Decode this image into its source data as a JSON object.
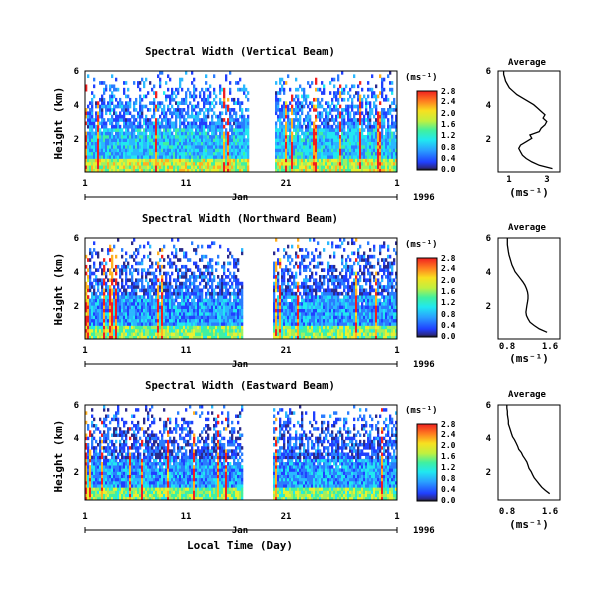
{
  "chart_data": [
    {
      "type": "heatmap",
      "title": "Spectral Width (Vertical Beam)",
      "ylabel": "Height (km)",
      "ylim": [
        0,
        6
      ],
      "yticks": [
        "2",
        "4",
        "6"
      ],
      "xticks": [
        "1",
        "11",
        "21",
        "1"
      ],
      "month_label": "Jan",
      "year_label": "1996",
      "data_gap_days": [
        17.2,
        19.8
      ],
      "colorbar": {
        "unit": "(ms⁻¹)",
        "ticks": [
          "0.0",
          "0.4",
          "0.8",
          "1.2",
          "1.6",
          "2.0",
          "2.4",
          "2.8"
        ],
        "range": [
          0,
          2.8
        ]
      },
      "average": {
        "title": "Average",
        "xlabel": "(ms⁻¹)",
        "xticks": [
          "1",
          "3"
        ],
        "xlim": [
          0.5,
          3.8
        ],
        "height": [
          0.2,
          0.4,
          0.6,
          0.8,
          1.0,
          1.2,
          1.4,
          1.6,
          1.8,
          2.0,
          2.2,
          2.4,
          2.6,
          2.8,
          3.0,
          3.2,
          3.4,
          3.6,
          3.8,
          4.0,
          4.2,
          4.4,
          4.6,
          4.8,
          5.0,
          5.2,
          5.4,
          5.6,
          5.8,
          6.0
        ],
        "values": [
          3.4,
          2.7,
          2.3,
          2.0,
          1.8,
          1.7,
          1.6,
          1.7,
          2.0,
          2.3,
          2.2,
          2.7,
          2.8,
          3.0,
          3.1,
          2.9,
          3.0,
          2.8,
          2.6,
          2.4,
          2.1,
          1.8,
          1.5,
          1.3,
          1.1,
          1.0,
          0.9,
          0.85,
          0.8,
          0.8
        ]
      }
    },
    {
      "type": "heatmap",
      "title": "Spectral Width (Northward Beam)",
      "ylabel": "Height (km)",
      "ylim": [
        0,
        6
      ],
      "yticks": [
        "2",
        "4",
        "6"
      ],
      "xticks": [
        "1",
        "11",
        "21",
        "1"
      ],
      "month_label": "Jan",
      "year_label": "1996",
      "data_gap_days": [
        16.6,
        19.6
      ],
      "colorbar": {
        "unit": "(ms⁻¹)",
        "ticks": [
          "0.0",
          "0.4",
          "0.8",
          "1.2",
          "1.6",
          "2.0",
          "2.4",
          "2.8"
        ],
        "range": [
          0,
          2.8
        ]
      },
      "average": {
        "title": "Average",
        "xlabel": "(ms⁻¹)",
        "xticks": [
          "0.8",
          "1.6"
        ],
        "xlim": [
          0.6,
          1.8
        ],
        "height": [
          0.4,
          0.6,
          0.8,
          1.0,
          1.2,
          1.4,
          1.6,
          1.8,
          2.0,
          2.2,
          2.4,
          2.6,
          2.8,
          3.0,
          3.2,
          3.4,
          3.6,
          3.8,
          4.0,
          4.2,
          4.4,
          4.6,
          4.8,
          5.0,
          5.2,
          5.4,
          5.6,
          5.8,
          6.0
        ],
        "values": [
          1.55,
          1.4,
          1.3,
          1.22,
          1.18,
          1.15,
          1.14,
          1.15,
          1.16,
          1.17,
          1.18,
          1.18,
          1.17,
          1.15,
          1.12,
          1.08,
          1.03,
          0.98,
          0.93,
          0.9,
          0.87,
          0.85,
          0.83,
          0.81,
          0.8,
          0.79,
          0.78,
          0.78,
          0.78
        ]
      }
    },
    {
      "type": "heatmap",
      "title": "Spectral Width (Eastward Beam)",
      "ylabel": "Height (km)",
      "xlabel": "Local Time (Day)",
      "ylim": [
        0,
        6
      ],
      "yticks": [
        "2",
        "4",
        "6"
      ],
      "xticks": [
        "1",
        "11",
        "21",
        "1"
      ],
      "month_label": "Jan",
      "year_label": "1996",
      "data_gap_days": [
        16.6,
        19.6
      ],
      "colorbar": {
        "unit": "(ms⁻¹)",
        "ticks": [
          "0.0",
          "0.4",
          "0.8",
          "1.2",
          "1.6",
          "2.0",
          "2.4",
          "2.8"
        ],
        "range": [
          0,
          2.8
        ]
      },
      "average": {
        "title": "Average",
        "xlabel": "(ms⁻¹)",
        "xticks": [
          "0.8",
          "1.6"
        ],
        "xlim": [
          0.6,
          1.8
        ],
        "height": [
          0.4,
          0.6,
          0.8,
          1.0,
          1.2,
          1.4,
          1.6,
          1.8,
          2.0,
          2.2,
          2.4,
          2.6,
          2.8,
          3.0,
          3.2,
          3.4,
          3.6,
          3.8,
          4.0,
          4.2,
          4.4,
          4.6,
          4.8,
          5.0,
          5.2,
          5.4,
          5.6,
          5.8,
          6.0
        ],
        "values": [
          1.6,
          1.52,
          1.45,
          1.4,
          1.35,
          1.3,
          1.27,
          1.24,
          1.2,
          1.18,
          1.16,
          1.12,
          1.08,
          1.05,
          1.0,
          0.98,
          0.95,
          0.92,
          0.88,
          0.86,
          0.84,
          0.82,
          0.8,
          0.8,
          0.79,
          0.78,
          0.78,
          0.77,
          0.77
        ]
      }
    }
  ]
}
